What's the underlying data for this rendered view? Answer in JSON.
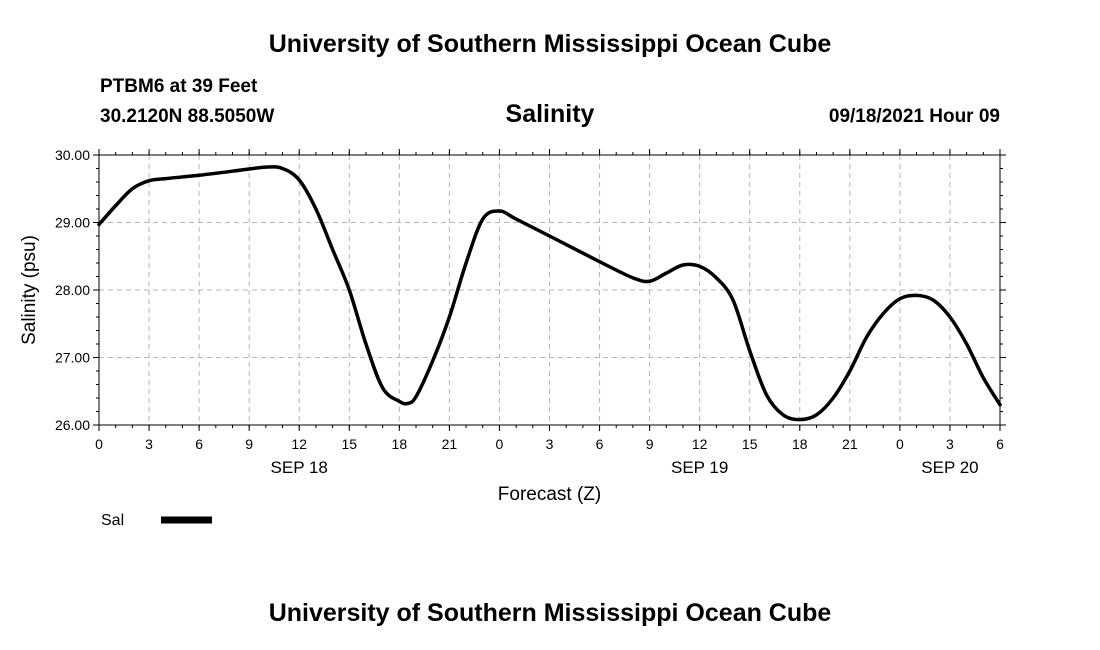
{
  "header": {
    "title_top": "University of Southern Mississippi Ocean Cube",
    "station": "PTBM6 at 39 Feet",
    "coords": "30.2120N  88.5050W",
    "valid_time": "09/18/2021 Hour 09"
  },
  "footer": {
    "title_bottom": "University of Southern Mississippi Ocean Cube"
  },
  "chart_data": {
    "type": "line",
    "title": "Salinity",
    "xlabel": "Forecast (Z)",
    "ylabel": "Salinity (psu)",
    "x_unit": "forecast hours from SEP 18 00Z",
    "xlim": [
      0,
      54
    ],
    "ylim": [
      26.0,
      30.0
    ],
    "grid": true,
    "y_ticks": [
      "26.00",
      "27.00",
      "28.00",
      "29.00",
      "30.00"
    ],
    "y_tick_values": [
      26,
      27,
      28,
      29,
      30
    ],
    "x_ticks": [
      "0",
      "3",
      "6",
      "9",
      "12",
      "15",
      "18",
      "21",
      "0",
      "3",
      "6",
      "9",
      "12",
      "15",
      "18",
      "21",
      "0",
      "3",
      "6"
    ],
    "x_tick_values": [
      0,
      3,
      6,
      9,
      12,
      15,
      18,
      21,
      24,
      27,
      30,
      33,
      36,
      39,
      42,
      45,
      48,
      51,
      54
    ],
    "date_labels": [
      {
        "label": "SEP 18",
        "x": 12
      },
      {
        "label": "SEP 19",
        "x": 36
      },
      {
        "label": "SEP 20",
        "x": 51
      }
    ],
    "legend_position": "bottom-left",
    "series": [
      {
        "name": "Sal",
        "color": "#000000",
        "x": [
          0,
          1,
          2,
          3,
          4,
          6,
          8,
          10,
          11,
          12,
          13,
          14,
          15,
          16,
          17,
          18,
          18.5,
          19,
          20,
          21,
          22,
          23,
          24,
          25,
          27,
          30,
          32,
          33,
          34,
          35,
          36,
          37,
          38,
          39,
          40,
          41,
          42,
          43,
          44,
          45,
          46,
          47,
          48,
          49,
          50,
          51,
          52,
          53,
          54
        ],
        "y": [
          28.97,
          29.25,
          29.5,
          29.62,
          29.65,
          29.7,
          29.76,
          29.82,
          29.8,
          29.63,
          29.2,
          28.6,
          28.0,
          27.2,
          26.55,
          26.35,
          26.32,
          26.42,
          26.95,
          27.6,
          28.4,
          29.05,
          29.17,
          29.05,
          28.8,
          28.42,
          28.18,
          28.13,
          28.25,
          28.37,
          28.35,
          28.18,
          27.85,
          27.1,
          26.45,
          26.15,
          26.08,
          26.15,
          26.4,
          26.8,
          27.3,
          27.65,
          27.87,
          27.92,
          27.85,
          27.6,
          27.2,
          26.7,
          26.3
        ]
      }
    ]
  }
}
